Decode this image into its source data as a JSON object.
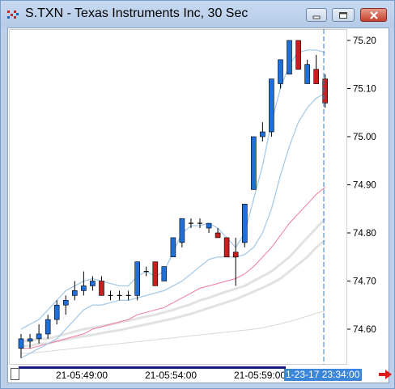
{
  "window": {
    "title": "S.TXN - Texas Instruments Inc, 30 Sec",
    "icons": [
      "app-icon",
      "minimize-icon",
      "restore-icon",
      "close-icon"
    ]
  },
  "axis": {
    "price_labels": [
      "75.20",
      "75.10",
      "75.00",
      "74.90",
      "74.80",
      "74.70",
      "74.60"
    ],
    "time_labels": [
      "21-05:49:00",
      "21-05:54:00",
      "21-05:59:00"
    ],
    "current_time": "1-23-17 23:34:00"
  },
  "colors": {
    "up_candle": "#1f6fd6",
    "down_candle": "#c81e1e",
    "band": "#a9cbe8",
    "ma_fast": "#f07aa0",
    "ma_slow": "#d8d8d8",
    "cursor": "#2a7fd4"
  },
  "chart_data": {
    "type": "candlestick",
    "ylim": [
      74.53,
      75.23
    ],
    "y_ticks": [
      75.2,
      75.1,
      75.0,
      74.9,
      74.8,
      74.7,
      74.6
    ],
    "candles": [
      {
        "o": 74.56,
        "h": 74.59,
        "l": 74.54,
        "c": 74.58
      },
      {
        "o": 74.575,
        "h": 74.59,
        "l": 74.56,
        "c": 74.58
      },
      {
        "o": 74.58,
        "h": 74.61,
        "l": 74.57,
        "c": 74.59
      },
      {
        "o": 74.59,
        "h": 74.63,
        "l": 74.58,
        "c": 74.62
      },
      {
        "o": 74.62,
        "h": 74.66,
        "l": 74.61,
        "c": 74.65
      },
      {
        "o": 74.65,
        "h": 74.67,
        "l": 74.63,
        "c": 74.66
      },
      {
        "o": 74.67,
        "h": 74.7,
        "l": 74.66,
        "c": 74.68
      },
      {
        "o": 74.68,
        "h": 74.72,
        "l": 74.67,
        "c": 74.69
      },
      {
        "o": 74.69,
        "h": 74.71,
        "l": 74.68,
        "c": 74.7
      },
      {
        "o": 74.7,
        "h": 74.71,
        "l": 74.67,
        "c": 74.67
      },
      {
        "o": 74.67,
        "h": 74.68,
        "l": 74.66,
        "c": 74.67
      },
      {
        "o": 74.67,
        "h": 74.68,
        "l": 74.66,
        "c": 74.67
      },
      {
        "o": 74.67,
        "h": 74.68,
        "l": 74.66,
        "c": 74.67
      },
      {
        "o": 74.67,
        "h": 74.74,
        "l": 74.66,
        "c": 74.74
      },
      {
        "o": 74.72,
        "h": 74.73,
        "l": 74.71,
        "c": 74.72
      },
      {
        "o": 74.74,
        "h": 74.74,
        "l": 74.69,
        "c": 74.69
      },
      {
        "o": 74.7,
        "h": 74.73,
        "l": 74.7,
        "c": 74.73
      },
      {
        "o": 74.75,
        "h": 74.79,
        "l": 74.75,
        "c": 74.79
      },
      {
        "o": 74.78,
        "h": 74.83,
        "l": 74.77,
        "c": 74.83
      },
      {
        "o": 74.82,
        "h": 74.83,
        "l": 74.81,
        "c": 74.82
      },
      {
        "o": 74.82,
        "h": 74.83,
        "l": 74.81,
        "c": 74.82
      },
      {
        "o": 74.81,
        "h": 74.82,
        "l": 74.8,
        "c": 74.82
      },
      {
        "o": 74.8,
        "h": 74.81,
        "l": 74.79,
        "c": 74.79
      },
      {
        "o": 74.79,
        "h": 74.79,
        "l": 74.75,
        "c": 74.75
      },
      {
        "o": 74.76,
        "h": 74.79,
        "l": 74.69,
        "c": 74.75
      },
      {
        "o": 74.78,
        "h": 74.86,
        "l": 74.77,
        "c": 74.86
      },
      {
        "o": 74.89,
        "h": 75.0,
        "l": 74.89,
        "c": 75.0
      },
      {
        "o": 75.0,
        "h": 75.03,
        "l": 74.99,
        "c": 75.01
      },
      {
        "o": 75.01,
        "h": 75.12,
        "l": 75.0,
        "c": 75.12
      },
      {
        "o": 75.11,
        "h": 75.16,
        "l": 75.1,
        "c": 75.16
      },
      {
        "o": 75.13,
        "h": 75.2,
        "l": 75.13,
        "c": 75.2
      },
      {
        "o": 75.2,
        "h": 75.2,
        "l": 75.14,
        "c": 75.14
      },
      {
        "o": 75.11,
        "h": 75.16,
        "l": 75.11,
        "c": 75.15
      },
      {
        "o": 75.14,
        "h": 75.17,
        "l": 75.11,
        "c": 75.11
      },
      {
        "o": 75.12,
        "h": 75.13,
        "l": 75.06,
        "c": 75.07
      }
    ],
    "bands_upper": [
      74.6,
      74.61,
      74.62,
      74.64,
      74.66,
      74.68,
      74.69,
      74.7,
      74.705,
      74.7,
      74.695,
      74.69,
      74.69,
      74.71,
      74.72,
      74.71,
      74.72,
      74.76,
      74.8,
      74.815,
      74.815,
      74.82,
      74.81,
      74.79,
      74.77,
      74.8,
      74.87,
      74.94,
      75.03,
      75.1,
      75.15,
      75.175,
      75.18,
      75.18,
      75.175
    ],
    "bands_lower": [
      74.54,
      74.55,
      74.56,
      74.57,
      74.58,
      74.6,
      74.62,
      74.64,
      74.65,
      74.65,
      74.655,
      74.66,
      74.66,
      74.665,
      74.67,
      74.675,
      74.68,
      74.69,
      74.7,
      74.715,
      74.73,
      74.745,
      74.75,
      74.75,
      74.75,
      74.755,
      74.77,
      74.8,
      74.85,
      74.92,
      74.98,
      75.03,
      75.06,
      75.08,
      75.09
    ],
    "ma_fast": [
      74.56,
      74.56,
      74.565,
      74.57,
      74.575,
      74.58,
      74.585,
      74.59,
      74.6,
      74.605,
      74.61,
      74.615,
      74.62,
      74.63,
      74.635,
      74.64,
      74.645,
      74.655,
      74.665,
      74.675,
      74.685,
      74.69,
      74.695,
      74.7,
      74.705,
      74.715,
      74.73,
      74.75,
      74.77,
      74.795,
      74.82,
      74.84,
      74.86,
      74.88,
      74.895
    ],
    "ma_mid": [
      74.575,
      74.575,
      74.58,
      74.58,
      74.585,
      74.59,
      74.595,
      74.6,
      74.603,
      74.606,
      74.61,
      74.614,
      74.618,
      74.622,
      74.626,
      74.63,
      74.635,
      74.64,
      74.646,
      74.652,
      74.66,
      74.665,
      74.672,
      74.678,
      74.684,
      74.69,
      74.7,
      74.71,
      74.72,
      74.735,
      74.75,
      74.77,
      74.79,
      74.81,
      74.83
    ],
    "ma_mid2": [
      74.565,
      74.565,
      74.57,
      74.57,
      74.575,
      74.578,
      74.582,
      74.585,
      74.588,
      74.592,
      74.595,
      74.598,
      74.602,
      74.606,
      74.61,
      74.614,
      74.618,
      74.622,
      74.627,
      74.632,
      74.638,
      74.644,
      74.65,
      74.656,
      74.662,
      74.67,
      74.678,
      74.686,
      74.695,
      74.705,
      74.72,
      74.735,
      74.75,
      74.77,
      74.785
    ],
    "ma_slow": [
      74.55,
      74.55,
      74.552,
      74.554,
      74.556,
      74.558,
      74.56,
      74.562,
      74.564,
      74.566,
      74.568,
      74.57,
      74.572,
      74.574,
      74.576,
      74.578,
      74.58,
      74.582,
      74.584,
      74.586,
      74.588,
      74.59,
      74.592,
      74.594,
      74.596,
      74.598,
      74.6,
      74.603,
      74.607,
      74.611,
      74.616,
      74.621,
      74.627,
      74.633,
      74.638
    ]
  }
}
